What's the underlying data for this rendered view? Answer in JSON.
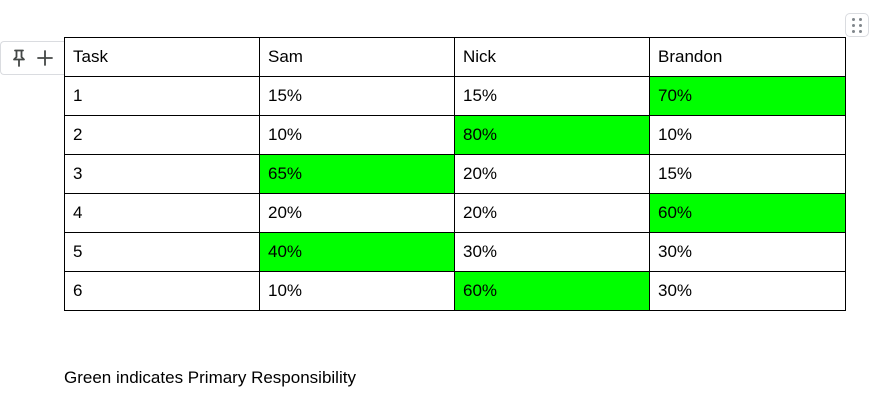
{
  "table": {
    "highlight_color": "#00ff00",
    "headers": [
      "Task",
      "Sam",
      "Nick",
      "Brandon"
    ],
    "rows": [
      {
        "task": "1",
        "sam": "15%",
        "nick": "15%",
        "brandon": "70%",
        "primary": "brandon"
      },
      {
        "task": "2",
        "sam": "10%",
        "nick": "80%",
        "brandon": "10%",
        "primary": "nick"
      },
      {
        "task": "3",
        "sam": "65%",
        "nick": "20%",
        "brandon": "15%",
        "primary": "sam"
      },
      {
        "task": "4",
        "sam": "20%",
        "nick": "20%",
        "brandon": "60%",
        "primary": "brandon"
      },
      {
        "task": "5",
        "sam": "40%",
        "nick": "30%",
        "brandon": "30%",
        "primary": "sam"
      },
      {
        "task": "6",
        "sam": "10%",
        "nick": "60%",
        "brandon": "30%",
        "primary": "nick"
      }
    ]
  },
  "row_tools": {
    "pin_icon": "pin-icon",
    "add_icon": "plus-icon"
  },
  "drag_handle_icon": "drag-handle-icon",
  "note": "Green indicates Primary Responsibility"
}
